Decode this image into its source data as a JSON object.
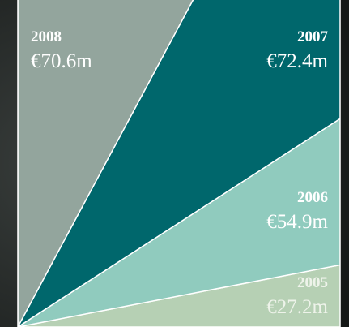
{
  "chart_data": {
    "type": "wedge",
    "categories": [
      "2008",
      "2007",
      "2006",
      "2005"
    ],
    "values": [
      70.6,
      72.4,
      54.9,
      27.2
    ],
    "value_labels": [
      "€70.6m",
      "€72.4m",
      "€54.9m",
      "€27.2m"
    ],
    "colors": [
      "#93a59d",
      "#00676c",
      "#90cbbe",
      "#b6d0b4"
    ]
  }
}
